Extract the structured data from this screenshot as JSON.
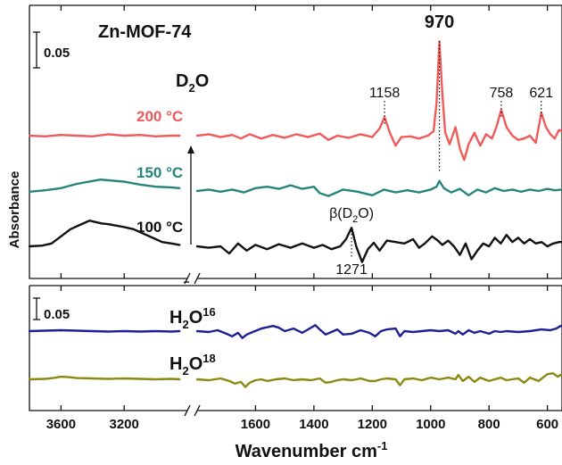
{
  "chart_data": {
    "type": "line",
    "title": "Zn-MOF-74",
    "xlabel": "Wavenumber cm",
    "xlabel_superscript": "-1",
    "ylabel": "Absorbance",
    "axis_break": true,
    "x_left_segment": {
      "range": [
        3800,
        2800
      ],
      "ticks": [
        3600,
        3200
      ]
    },
    "x_right_segment": {
      "range": [
        1800,
        550
      ],
      "ticks": [
        1600,
        1400,
        1200,
        1000,
        800,
        600
      ]
    },
    "top_panel": {
      "scale_bar": "0.05",
      "gas_label": {
        "base": "D",
        "sub": "2",
        "tail": "O"
      },
      "annotations": [
        {
          "text": "970",
          "x": 970
        },
        {
          "text": "1158",
          "x": 1158
        },
        {
          "text": "758",
          "x": 758
        },
        {
          "text": "621",
          "x": 621
        },
        {
          "text": "1271",
          "x": 1271
        },
        {
          "text": "β(D",
          "sub": "2",
          "tail": "O)",
          "x": 1271
        }
      ],
      "series": [
        {
          "name": "200 °C",
          "color": "#f05a5a",
          "left": {
            "x": [
              3800,
              3700,
              3600,
              3500,
              3400,
              3300,
              3200,
              3100,
              3000,
              2900,
              2850
            ],
            "y": [
              0.0,
              -0.001,
              0.001,
              0.0,
              -0.001,
              0.002,
              0.0,
              0.001,
              -0.001,
              0.0,
              0.0
            ]
          },
          "right": {
            "x": [
              1800,
              1760,
              1720,
              1680,
              1650,
              1620,
              1580,
              1540,
              1500,
              1460,
              1420,
              1380,
              1350,
              1320,
              1280,
              1240,
              1200,
              1175,
              1158,
              1140,
              1120,
              1100,
              1070,
              1040,
              1010,
              990,
              980,
              970,
              960,
              950,
              935,
              915,
              900,
              885,
              870,
              850,
              830,
              810,
              790,
              775,
              758,
              740,
              720,
              700,
              680,
              660,
              640,
              621,
              605,
              590,
              575,
              560,
              550
            ],
            "y": [
              0.0,
              0.002,
              -0.002,
              0.001,
              -0.004,
              0.002,
              -0.004,
              0.001,
              -0.003,
              0.002,
              -0.002,
              0.003,
              -0.006,
              0.0,
              -0.003,
              0.002,
              -0.002,
              0.01,
              0.026,
              0.004,
              -0.014,
              -0.002,
              -0.001,
              -0.004,
              0.0,
              0.006,
              0.045,
              0.132,
              0.06,
              0.004,
              -0.012,
              0.012,
              -0.018,
              -0.034,
              -0.012,
              0.004,
              -0.014,
              0.002,
              -0.004,
              0.012,
              0.036,
              0.012,
              0.0,
              -0.006,
              -0.004,
              0.0,
              -0.01,
              0.032,
              0.012,
              0.002,
              -0.004,
              0.008,
              0.006
            ]
          }
        },
        {
          "name": "150 °C",
          "color": "#25857c",
          "left": {
            "x": [
              3800,
              3700,
              3600,
              3500,
              3400,
              3350,
              3300,
              3200,
              3100,
              3000,
              2900,
              2850
            ],
            "y": [
              -0.001,
              0.001,
              0.004,
              0.01,
              0.014,
              0.016,
              0.015,
              0.013,
              0.009,
              0.006,
              0.005,
              0.004
            ]
          },
          "right": {
            "x": [
              1800,
              1760,
              1720,
              1680,
              1640,
              1600,
              1560,
              1520,
              1480,
              1440,
              1400,
              1380,
              1350,
              1300,
              1250,
              1200,
              1160,
              1120,
              1080,
              1040,
              1000,
              980,
              970,
              955,
              930,
              900,
              870,
              840,
              810,
              780,
              750,
              720,
              690,
              660,
              630,
              600,
              575,
              550
            ],
            "y": [
              0.0,
              0.002,
              -0.001,
              0.002,
              -0.002,
              0.004,
              0.006,
              0.003,
              0.008,
              0.003,
              0.006,
              -0.003,
              -0.007,
              0.002,
              -0.001,
              -0.006,
              0.002,
              -0.002,
              0.001,
              -0.002,
              0.002,
              0.006,
              0.014,
              0.004,
              -0.002,
              0.003,
              -0.006,
              0.002,
              -0.002,
              0.004,
              0.0,
              0.002,
              -0.001,
              0.002,
              0.0,
              0.003,
              0.001,
              0.002
            ]
          }
        },
        {
          "name": "100 °C",
          "color": "#111111",
          "left": {
            "x": [
              3800,
              3720,
              3660,
              3600,
              3540,
              3480,
              3420,
              3380,
              3340,
              3300,
              3250,
              3200,
              3140,
              3080,
              3020,
              2960,
              2900,
              2850
            ],
            "y": [
              0.0,
              0.001,
              0.004,
              0.014,
              0.024,
              0.03,
              0.036,
              0.034,
              0.032,
              0.031,
              0.029,
              0.027,
              0.024,
              0.018,
              0.012,
              0.006,
              0.004,
              0.002
            ]
          },
          "right": {
            "x": [
              1800,
              1760,
              1720,
              1690,
              1660,
              1630,
              1600,
              1560,
              1520,
              1480,
              1440,
              1400,
              1370,
              1340,
              1310,
              1290,
              1271,
              1255,
              1235,
              1215,
              1195,
              1175,
              1150,
              1120,
              1090,
              1060,
              1040,
              1020,
              995,
              975,
              960,
              940,
              920,
              900,
              880,
              860,
              840,
              820,
              800,
              780,
              760,
              740,
              720,
              700,
              680,
              660,
              640,
              620,
              600,
              580,
              560,
              550
            ],
            "y": [
              0.0,
              -0.002,
              0.0,
              -0.01,
              0.004,
              -0.006,
              0.002,
              -0.004,
              0.003,
              -0.002,
              0.004,
              -0.002,
              0.002,
              -0.004,
              0.0,
              0.01,
              0.026,
              0.0,
              -0.022,
              -0.004,
              0.005,
              -0.006,
              0.008,
              0.006,
              0.004,
              0.01,
              -0.002,
              0.004,
              0.014,
              0.008,
              0.002,
              0.008,
              0.0,
              -0.012,
              0.004,
              -0.018,
              -0.006,
              0.004,
              0.0,
              0.012,
              0.004,
              0.016,
              0.006,
              0.012,
              0.004,
              0.01,
              0.004,
              0.006,
              0.0,
              0.004,
              0.006,
              0.006
            ]
          }
        }
      ]
    },
    "bottom_panel": {
      "scale_bar": "0.05",
      "series": [
        {
          "name": "H2O16",
          "label": {
            "base": "H",
            "sub": "2",
            "tail": "O",
            "sup": "16"
          },
          "color": "#1e1f96",
          "left": {
            "x": [
              3800,
              3700,
              3600,
              3500,
              3400,
              3300,
              3200,
              3100,
              3000,
              2900,
              2850
            ],
            "y": [
              0.0,
              0.001,
              0.002,
              0.001,
              0.0,
              -0.001,
              0.0,
              -0.001,
              0.0,
              -0.001,
              0.0
            ]
          },
          "right": {
            "x": [
              1800,
              1760,
              1730,
              1700,
              1680,
              1660,
              1645,
              1630,
              1610,
              1580,
              1540,
              1520,
              1500,
              1470,
              1440,
              1420,
              1395,
              1380,
              1360,
              1340,
              1320,
              1300,
              1270,
              1240,
              1210,
              1190,
              1170,
              1150,
              1120,
              1105,
              1090,
              1060,
              1030,
              1000,
              970,
              940,
              915,
              905,
              890,
              870,
              850,
              830,
              800,
              780,
              760,
              740,
              700,
              660,
              620,
              590,
              570,
              555,
              550
            ],
            "y": [
              0.0,
              -0.002,
              0.002,
              -0.006,
              -0.012,
              -0.004,
              -0.016,
              -0.008,
              -0.002,
              0.006,
              0.012,
              0.008,
              0.0,
              0.006,
              -0.004,
              0.004,
              0.014,
              0.004,
              -0.008,
              -0.002,
              0.004,
              -0.008,
              -0.006,
              0.002,
              -0.004,
              -0.012,
              0.0,
              0.004,
              0.006,
              -0.012,
              0.0,
              -0.002,
              0.0,
              0.002,
              0.0,
              0.002,
              -0.006,
              0.0,
              -0.008,
              0.002,
              -0.004,
              0.0,
              -0.006,
              0.0,
              -0.002,
              0.0,
              -0.002,
              0.0,
              0.004,
              0.002,
              0.006,
              0.012,
              0.012
            ]
          }
        },
        {
          "name": "H2O18",
          "label": {
            "base": "H",
            "sub": "2",
            "tail": "O",
            "sup": "18"
          },
          "color": "#8a8a10",
          "left": {
            "x": [
              3800,
              3700,
              3650,
              3600,
              3550,
              3500,
              3400,
              3300,
              3200,
              3100,
              3000,
              2900,
              2850
            ],
            "y": [
              0.0,
              0.001,
              0.003,
              0.006,
              0.005,
              0.003,
              0.002,
              0.001,
              0.002,
              0.001,
              0.0,
              0.001,
              0.0
            ]
          },
          "right": {
            "x": [
              1800,
              1760,
              1720,
              1690,
              1670,
              1650,
              1635,
              1620,
              1600,
              1580,
              1560,
              1530,
              1500,
              1470,
              1440,
              1410,
              1380,
              1360,
              1340,
              1320,
              1300,
              1270,
              1240,
              1210,
              1190,
              1170,
              1150,
              1120,
              1105,
              1090,
              1060,
              1030,
              1000,
              970,
              940,
              915,
              905,
              890,
              870,
              850,
              830,
              800,
              780,
              760,
              740,
              700,
              680,
              660,
              630,
              600,
              580,
              565,
              550
            ],
            "y": [
              0.0,
              -0.002,
              0.002,
              -0.004,
              -0.01,
              -0.006,
              -0.018,
              -0.008,
              -0.002,
              0.0,
              -0.004,
              0.0,
              0.002,
              -0.002,
              0.0,
              -0.002,
              0.002,
              -0.008,
              -0.006,
              -0.002,
              0.0,
              -0.002,
              0.002,
              -0.004,
              -0.004,
              0.0,
              0.002,
              0.0,
              -0.014,
              0.0,
              0.002,
              -0.002,
              0.004,
              0.0,
              0.004,
              0.0,
              0.01,
              -0.004,
              0.006,
              -0.006,
              0.004,
              -0.004,
              0.0,
              0.004,
              -0.002,
              0.002,
              -0.008,
              0.004,
              -0.004,
              0.012,
              0.014,
              0.006,
              0.012
            ]
          }
        }
      ]
    }
  }
}
